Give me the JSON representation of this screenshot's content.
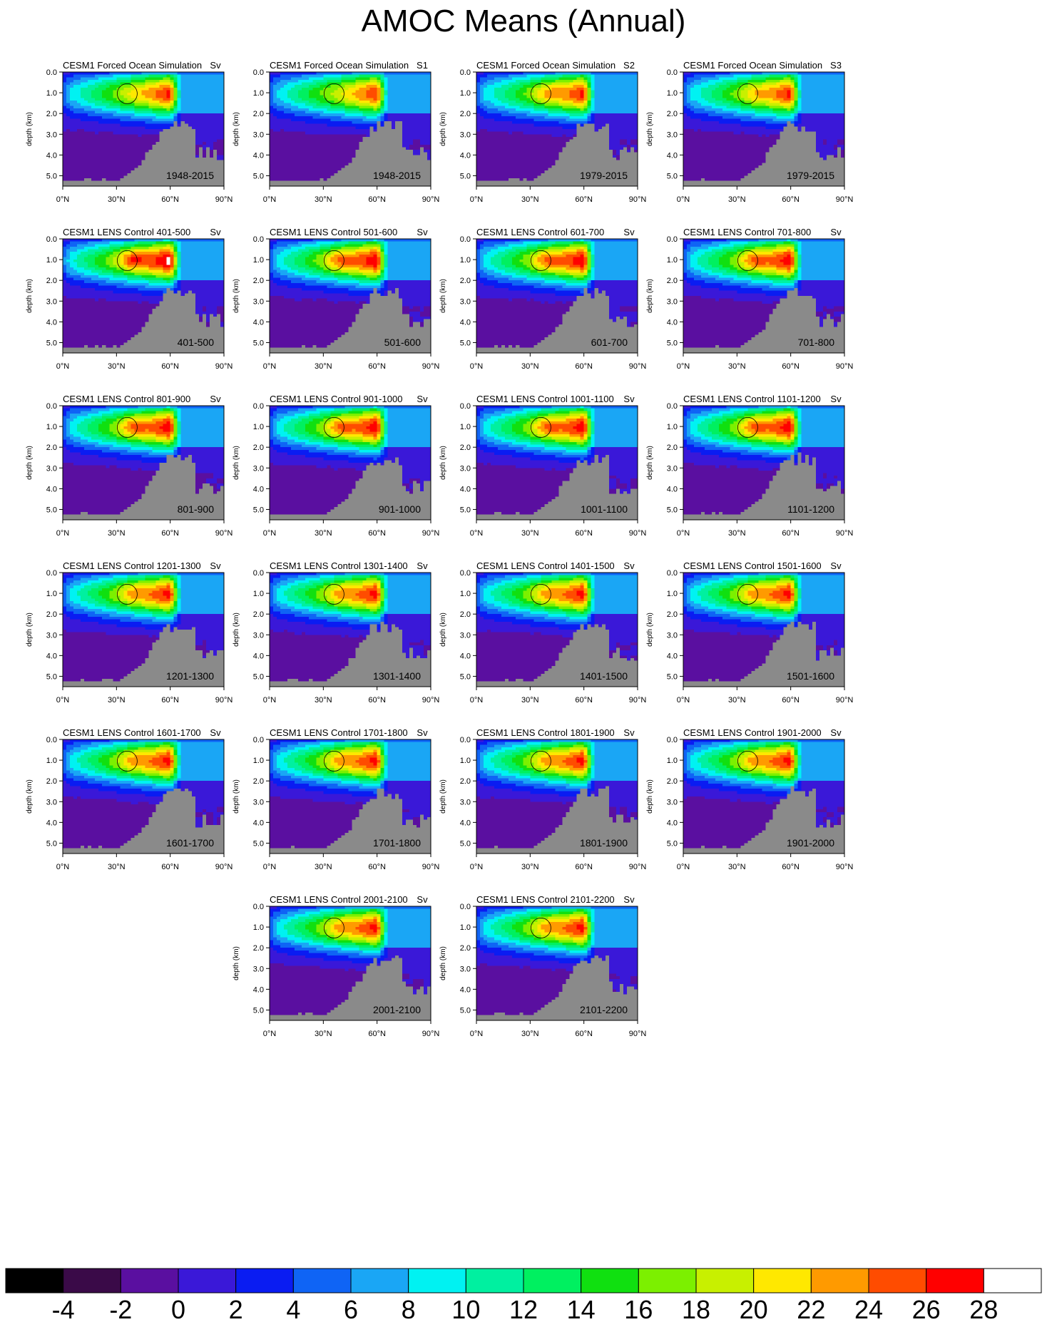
{
  "figure": {
    "title": "AMOC Means (Annual)",
    "units": "Sv"
  },
  "axes": {
    "ylabel": "depth (km)",
    "y_ticks": [
      "0.0",
      "1.0",
      "2.0",
      "3.0",
      "4.0",
      "5.0"
    ],
    "x_ticks": [
      "0°N",
      "30°N",
      "60°N",
      "90°N"
    ],
    "xlim": [
      0,
      90
    ],
    "ylim_km": [
      0,
      5.5
    ]
  },
  "colorbar": {
    "labels": [
      "-4",
      "-2",
      "0",
      "2",
      "4",
      "6",
      "8",
      "10",
      "12",
      "14",
      "16",
      "18",
      "20",
      "22",
      "24",
      "26",
      "28"
    ],
    "colors": [
      "#000000",
      "#3a0a48",
      "#5a0fa0",
      "#3a18d8",
      "#0a1cf2",
      "#0f64f5",
      "#1aa6f5",
      "#00f2f2",
      "#00f0a0",
      "#00f060",
      "#10e010",
      "#7cf000",
      "#c8f000",
      "#ffe800",
      "#ff9a00",
      "#ff4c00",
      "#ff0000",
      "#ffffff"
    ]
  },
  "chart_data": {
    "type": "heatmap",
    "panels": [
      {
        "title": "CESM1 Forced Ocean Simulation",
        "units": "Sv",
        "period": "1948-2015",
        "peak_sv": 23,
        "strength": 1.0
      },
      {
        "title": "CESM1 Forced Ocean Simulation",
        "units": "S1",
        "period": "1948-2015",
        "peak_sv": 22,
        "strength": 0.98
      },
      {
        "title": "CESM1 Forced Ocean Simulation",
        "units": "S2",
        "period": "1979-2015",
        "peak_sv": 25,
        "strength": 1.0
      },
      {
        "title": "CESM1 Forced Ocean Simulation",
        "units": "S3",
        "period": "1979-2015",
        "peak_sv": 24,
        "strength": 1.0
      },
      {
        "title": "CESM1 LENS Control 401-500",
        "units": "Sv",
        "period": "401-500",
        "peak_sv": 27,
        "strength": 1.08
      },
      {
        "title": "CESM1 LENS Control 501-600",
        "units": "Sv",
        "period": "501-600",
        "peak_sv": 26,
        "strength": 1.05
      },
      {
        "title": "CESM1 LENS Control 601-700",
        "units": "Sv",
        "period": "601-700",
        "peak_sv": 26,
        "strength": 1.05
      },
      {
        "title": "CESM1 LENS Control 701-800",
        "units": "Sv",
        "period": "701-800",
        "peak_sv": 26,
        "strength": 1.04
      },
      {
        "title": "CESM1 LENS Control 801-900",
        "units": "Sv",
        "period": "801-900",
        "peak_sv": 26,
        "strength": 1.04
      },
      {
        "title": "CESM1 LENS Control 901-1000",
        "units": "Sv",
        "period": "901-1000",
        "peak_sv": 26,
        "strength": 1.04
      },
      {
        "title": "CESM1 LENS Control 1001-1100",
        "units": "Sv",
        "period": "1001-1100",
        "peak_sv": 26,
        "strength": 1.04
      },
      {
        "title": "CESM1 LENS Control 1101-1200",
        "units": "Sv",
        "period": "1101-1200",
        "peak_sv": 26,
        "strength": 1.04
      },
      {
        "title": "CESM1 LENS Control 1201-1300",
        "units": "Sv",
        "period": "1201-1300",
        "peak_sv": 25,
        "strength": 1.02
      },
      {
        "title": "CESM1 LENS Control 1301-1400",
        "units": "Sv",
        "period": "1301-1400",
        "peak_sv": 25,
        "strength": 1.02
      },
      {
        "title": "CESM1 LENS Control 1401-1500",
        "units": "Sv",
        "period": "1401-1500",
        "peak_sv": 25,
        "strength": 1.02
      },
      {
        "title": "CESM1 LENS Control 1501-1600",
        "units": "Sv",
        "period": "1501-1600",
        "peak_sv": 25,
        "strength": 1.02
      },
      {
        "title": "CESM1 LENS Control 1601-1700",
        "units": "Sv",
        "period": "1601-1700",
        "peak_sv": 25,
        "strength": 1.02
      },
      {
        "title": "CESM1 LENS Control 1701-1800",
        "units": "Sv",
        "period": "1701-1800",
        "peak_sv": 25,
        "strength": 1.02
      },
      {
        "title": "CESM1 LENS Control 1801-1900",
        "units": "Sv",
        "period": "1801-1900",
        "peak_sv": 25,
        "strength": 1.02
      },
      {
        "title": "CESM1 LENS Control 1901-2000",
        "units": "Sv",
        "period": "1901-2000",
        "peak_sv": 25,
        "strength": 1.02
      },
      {
        "title": "CESM1 LENS Control 2001-2100",
        "units": "Sv",
        "period": "2001-2100",
        "peak_sv": 25,
        "strength": 1.02
      },
      {
        "title": "CESM1 LENS Control 2101-2200",
        "units": "Sv",
        "period": "2101-2200",
        "peak_sv": 25,
        "strength": 1.02
      }
    ]
  }
}
